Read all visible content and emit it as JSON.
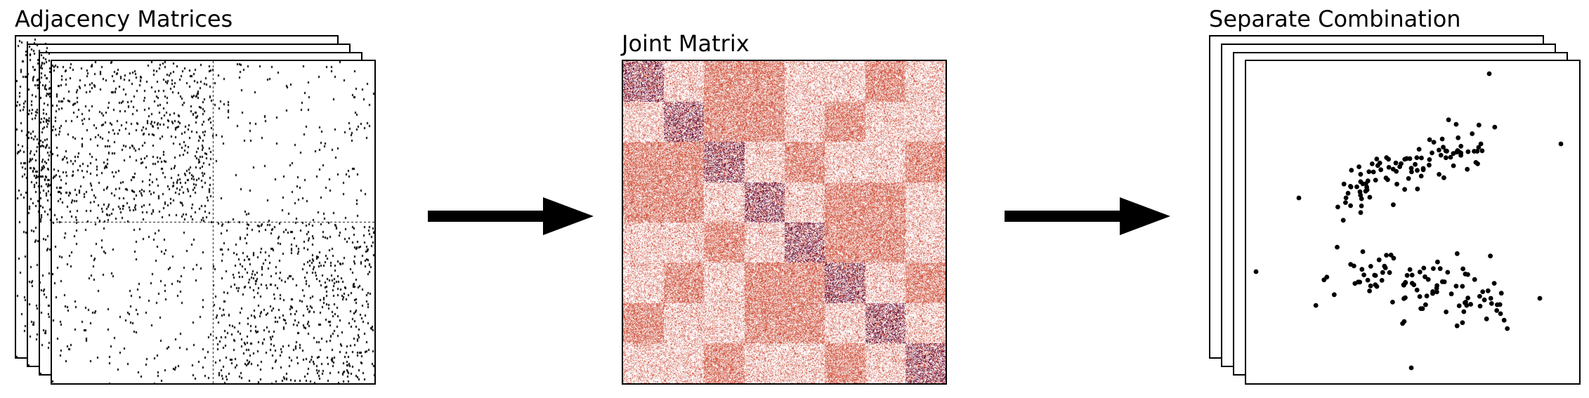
{
  "panels": {
    "adjacency": {
      "title": "Adjacency Matrices"
    },
    "joint": {
      "title": "Joint Matrix"
    },
    "separate": {
      "title": "Separate Combination"
    }
  },
  "colors": {
    "ink": "#000000",
    "joint_light": "#f0d8dc",
    "joint_peach": "#e8a08c",
    "joint_salmon": "#d05540",
    "joint_dark": "#5a1040"
  },
  "icons": [
    "right-arrow-icon",
    "right-arrow-icon"
  ]
}
